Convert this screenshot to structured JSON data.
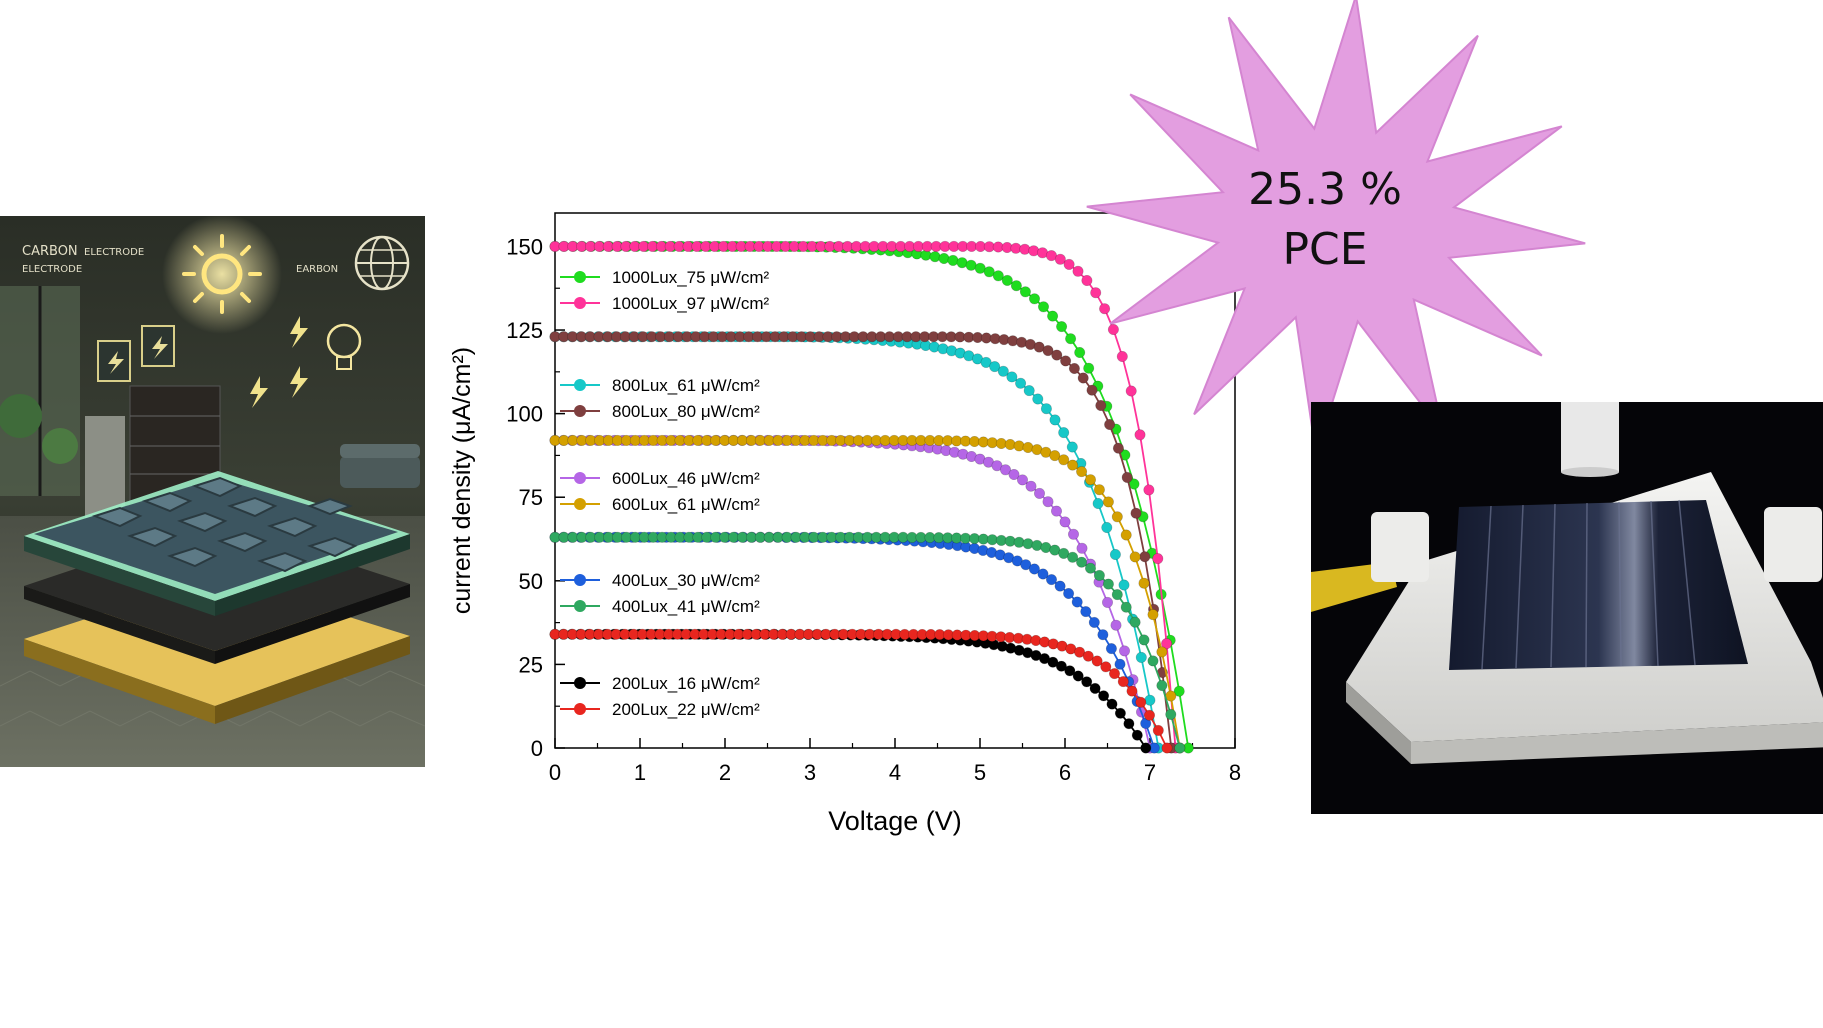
{
  "badge": {
    "line1": "25.3 %",
    "line2": "PCE",
    "color": "#e39ee0"
  },
  "illustration": {
    "label_carbon_electrode_1": "CARBON",
    "label_carbon_electrode_2": "ELECTRODE",
    "label_electrode": "ELECTRODE",
    "label_earbon": "EARBON"
  },
  "chart_data": {
    "type": "line",
    "title": "",
    "xlabel": "Voltage (V)",
    "ylabel": "current density (μA/cm²)",
    "xlim": [
      0,
      8
    ],
    "ylim": [
      0,
      160
    ],
    "x_ticks": [
      "0",
      "1",
      "2",
      "3",
      "4",
      "5",
      "6",
      "7",
      "8"
    ],
    "y_ticks": [
      "0",
      "25",
      "50",
      "75",
      "100",
      "125",
      "150"
    ],
    "legend_position": "left",
    "series": [
      {
        "name": "1000Lux_75 μW/cm²",
        "color": "#1fdc1f",
        "jsc": 150,
        "voc": 7.45,
        "knee_v": 2.6,
        "shape": 1.4
      },
      {
        "name": "1000Lux_97 μW/cm²",
        "color": "#ff3399",
        "jsc": 150,
        "voc": 7.3,
        "knee_v": 4.8,
        "shape": 1.7
      },
      {
        "name": "800Lux_61 μW/cm²",
        "color": "#17c8c8",
        "jsc": 123,
        "voc": 7.1,
        "knee_v": 2.6,
        "shape": 1.4
      },
      {
        "name": "800Lux_80 μW/cm²",
        "color": "#7f3f3f",
        "jsc": 123,
        "voc": 7.25,
        "knee_v": 4.4,
        "shape": 1.7
      },
      {
        "name": "600Lux_46 μW/cm²",
        "color": "#b566e6",
        "jsc": 92,
        "voc": 7.0,
        "knee_v": 2.6,
        "shape": 1.4
      },
      {
        "name": "600Lux_61 μW/cm²",
        "color": "#d4a000",
        "jsc": 92,
        "voc": 7.35,
        "knee_v": 4.2,
        "shape": 1.6
      },
      {
        "name": "400Lux_30 μW/cm²",
        "color": "#1e5fdc",
        "jsc": 63,
        "voc": 7.05,
        "knee_v": 2.6,
        "shape": 1.4
      },
      {
        "name": "400Lux_41 μW/cm²",
        "color": "#2fa860",
        "jsc": 63,
        "voc": 7.35,
        "knee_v": 4.0,
        "shape": 1.6
      },
      {
        "name": "200Lux_16 μW/cm²",
        "color": "#000000",
        "jsc": 34,
        "voc": 6.95,
        "knee_v": 2.4,
        "shape": 1.4
      },
      {
        "name": "200Lux_22 μW/cm²",
        "color": "#e8261f",
        "jsc": 34,
        "voc": 7.2,
        "knee_v": 3.8,
        "shape": 1.6
      }
    ]
  }
}
